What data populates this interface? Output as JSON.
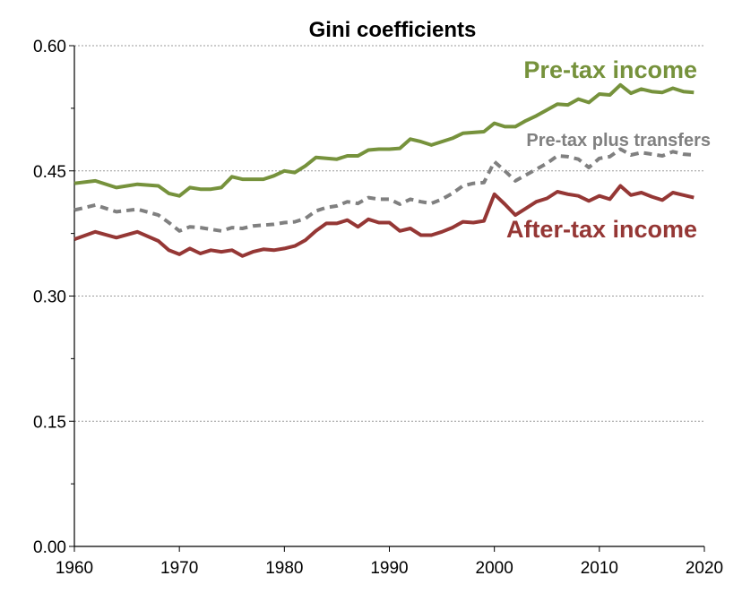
{
  "chart_data": {
    "type": "line",
    "title": "Gini coefficients",
    "xlabel": "",
    "ylabel": "",
    "xlim": [
      1960,
      2020
    ],
    "ylim": [
      0.0,
      0.6
    ],
    "xticks": [
      1960,
      1970,
      1980,
      1990,
      2000,
      2010,
      2020
    ],
    "xtick_labels": [
      "1960",
      "1970",
      "1980",
      "1990",
      "2000",
      "2010",
      "2020"
    ],
    "yticks": [
      0.0,
      0.15,
      0.3,
      0.45,
      0.6
    ],
    "ytick_labels": [
      "0.00",
      "0.15",
      "0.30",
      "0.45",
      "0.60"
    ],
    "grid": "horizontal dashed",
    "series": [
      {
        "name": "Pre-tax income",
        "label": "Pre-tax income",
        "color": "#76923c",
        "style": "solid",
        "x": [
          1960,
          1962,
          1964,
          1966,
          1968,
          1969,
          1970,
          1971,
          1972,
          1973,
          1974,
          1975,
          1976,
          1977,
          1978,
          1979,
          1980,
          1981,
          1982,
          1983,
          1984,
          1985,
          1986,
          1987,
          1988,
          1989,
          1990,
          1991,
          1992,
          1993,
          1994,
          1995,
          1996,
          1997,
          1998,
          1999,
          2000,
          2001,
          2002,
          2003,
          2004,
          2005,
          2006,
          2007,
          2008,
          2009,
          2010,
          2011,
          2012,
          2013,
          2014,
          2015,
          2016,
          2017,
          2018,
          2019
        ],
        "values": [
          0.435,
          0.438,
          0.43,
          0.434,
          0.432,
          0.423,
          0.42,
          0.43,
          0.428,
          0.428,
          0.43,
          0.443,
          0.44,
          0.44,
          0.44,
          0.444,
          0.45,
          0.448,
          0.456,
          0.466,
          0.465,
          0.464,
          0.468,
          0.468,
          0.475,
          0.476,
          0.476,
          0.477,
          0.488,
          0.485,
          0.481,
          0.485,
          0.489,
          0.495,
          0.496,
          0.497,
          0.507,
          0.503,
          0.503,
          0.51,
          0.516,
          0.523,
          0.53,
          0.529,
          0.536,
          0.532,
          0.542,
          0.541,
          0.553,
          0.543,
          0.548,
          0.545,
          0.544,
          0.549,
          0.545,
          0.544
        ]
      },
      {
        "name": "Pre-tax plus transfers",
        "label": "Pre-tax plus transfers",
        "color": "#808080",
        "style": "dashed",
        "x": [
          1960,
          1962,
          1964,
          1966,
          1968,
          1969,
          1970,
          1971,
          1972,
          1973,
          1974,
          1975,
          1976,
          1977,
          1978,
          1979,
          1980,
          1981,
          1982,
          1983,
          1984,
          1985,
          1986,
          1987,
          1988,
          1989,
          1990,
          1991,
          1992,
          1993,
          1994,
          1995,
          1996,
          1997,
          1998,
          1999,
          2000,
          2001,
          2002,
          2003,
          2004,
          2005,
          2006,
          2007,
          2008,
          2009,
          2010,
          2011,
          2012,
          2013,
          2014,
          2015,
          2016,
          2017,
          2018,
          2019
        ],
        "values": [
          0.403,
          0.409,
          0.401,
          0.404,
          0.397,
          0.388,
          0.378,
          0.383,
          0.382,
          0.38,
          0.378,
          0.382,
          0.381,
          0.384,
          0.385,
          0.386,
          0.388,
          0.389,
          0.393,
          0.402,
          0.406,
          0.408,
          0.413,
          0.411,
          0.418,
          0.416,
          0.416,
          0.41,
          0.416,
          0.413,
          0.411,
          0.416,
          0.423,
          0.432,
          0.435,
          0.436,
          0.461,
          0.45,
          0.438,
          0.445,
          0.452,
          0.459,
          0.468,
          0.467,
          0.464,
          0.454,
          0.465,
          0.467,
          0.476,
          0.469,
          0.472,
          0.47,
          0.468,
          0.473,
          0.47,
          0.469
        ]
      },
      {
        "name": "After-tax income",
        "label": "After-tax income",
        "color": "#953735",
        "style": "solid",
        "x": [
          1960,
          1962,
          1964,
          1966,
          1968,
          1969,
          1970,
          1971,
          1972,
          1973,
          1974,
          1975,
          1976,
          1977,
          1978,
          1979,
          1980,
          1981,
          1982,
          1983,
          1984,
          1985,
          1986,
          1987,
          1988,
          1989,
          1990,
          1991,
          1992,
          1993,
          1994,
          1995,
          1996,
          1997,
          1998,
          1999,
          2000,
          2001,
          2002,
          2003,
          2004,
          2005,
          2006,
          2007,
          2008,
          2009,
          2010,
          2011,
          2012,
          2013,
          2014,
          2015,
          2016,
          2017,
          2018,
          2019
        ],
        "values": [
          0.368,
          0.377,
          0.37,
          0.377,
          0.366,
          0.355,
          0.35,
          0.357,
          0.351,
          0.355,
          0.353,
          0.355,
          0.348,
          0.353,
          0.356,
          0.355,
          0.357,
          0.36,
          0.367,
          0.378,
          0.387,
          0.387,
          0.391,
          0.383,
          0.392,
          0.388,
          0.388,
          0.378,
          0.381,
          0.373,
          0.373,
          0.377,
          0.382,
          0.389,
          0.388,
          0.39,
          0.422,
          0.41,
          0.397,
          0.405,
          0.413,
          0.417,
          0.425,
          0.422,
          0.42,
          0.414,
          0.42,
          0.416,
          0.432,
          0.421,
          0.424,
          0.419,
          0.415,
          0.424,
          0.421,
          0.418
        ]
      }
    ]
  }
}
